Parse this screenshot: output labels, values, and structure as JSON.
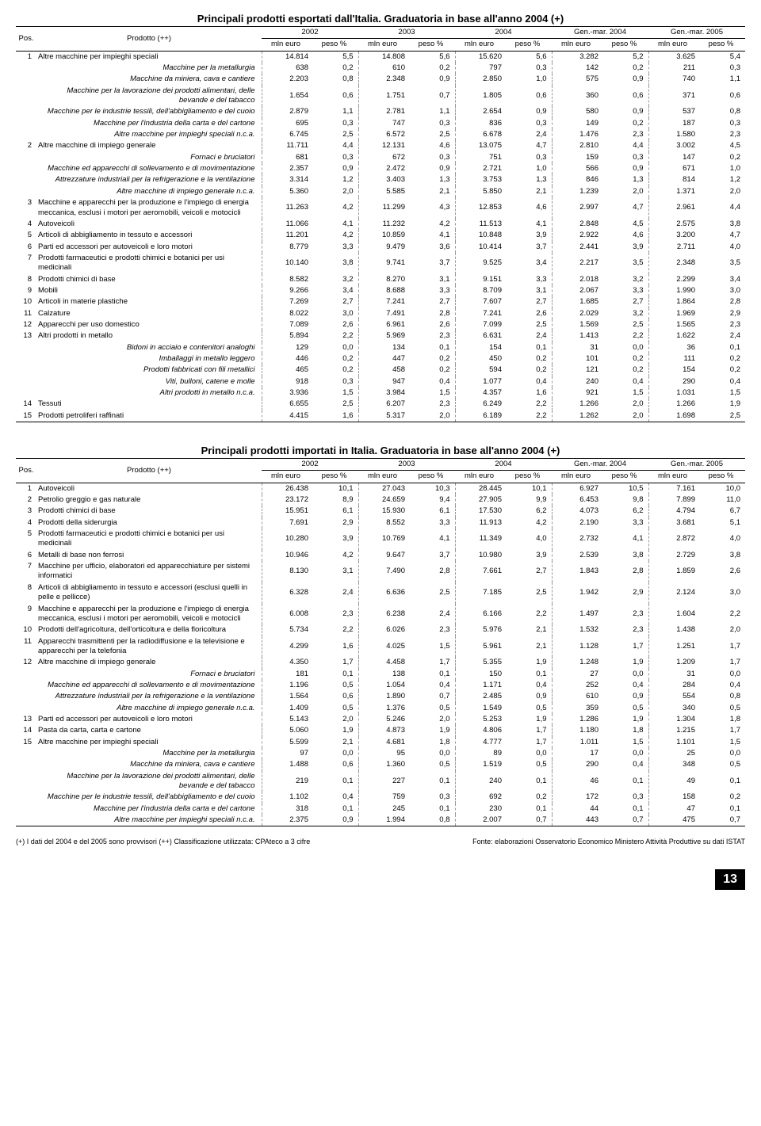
{
  "table1": {
    "title": "Principali prodotti esportati dall'Italia. Graduatoria in base all'anno 2004 (+)",
    "headers": {
      "pos": "Pos.",
      "prodotto": "Prodotto (++)",
      "years": [
        "2002",
        "2003",
        "2004",
        "Gen.-mar. 2004",
        "Gen.-mar. 2005"
      ],
      "sub": [
        "mln euro",
        "peso %"
      ]
    },
    "rows": [
      {
        "pos": "1",
        "prod": "Altre macchine per impieghi speciali",
        "v": [
          "14.814",
          "5,5",
          "14.808",
          "5,6",
          "15.620",
          "5,6",
          "3.282",
          "5,2",
          "3.625",
          "5,4"
        ]
      },
      {
        "sub": 1,
        "prod": "Macchine per la metallurgia",
        "v": [
          "638",
          "0,2",
          "610",
          "0,2",
          "797",
          "0,3",
          "142",
          "0,2",
          "211",
          "0,3"
        ]
      },
      {
        "sub": 1,
        "prod": "Macchine da miniera, cava e cantiere",
        "v": [
          "2.203",
          "0,8",
          "2.348",
          "0,9",
          "2.850",
          "1,0",
          "575",
          "0,9",
          "740",
          "1,1"
        ]
      },
      {
        "sub": 1,
        "prod": "Macchine per la lavorazione dei prodotti alimentari, delle bevande e del tabacco",
        "v": [
          "1.654",
          "0,6",
          "1.751",
          "0,7",
          "1.805",
          "0,6",
          "360",
          "0,6",
          "371",
          "0,6"
        ]
      },
      {
        "sub": 1,
        "prod": "Macchine per le industrie tessili, dell'abbigliamento e del cuoio",
        "v": [
          "2.879",
          "1,1",
          "2.781",
          "1,1",
          "2.654",
          "0,9",
          "580",
          "0,9",
          "537",
          "0,8"
        ]
      },
      {
        "sub": 1,
        "prod": "Macchine per l'industria della carta e del cartone",
        "v": [
          "695",
          "0,3",
          "747",
          "0,3",
          "836",
          "0,3",
          "149",
          "0,2",
          "187",
          "0,3"
        ]
      },
      {
        "sub": 1,
        "prod": "Altre macchine per impieghi speciali n.c.a.",
        "v": [
          "6.745",
          "2,5",
          "6.572",
          "2,5",
          "6.678",
          "2,4",
          "1.476",
          "2,3",
          "1.580",
          "2,3"
        ]
      },
      {
        "pos": "2",
        "prod": "Altre macchine di impiego generale",
        "v": [
          "11.711",
          "4,4",
          "12.131",
          "4,6",
          "13.075",
          "4,7",
          "2.810",
          "4,4",
          "3.002",
          "4,5"
        ]
      },
      {
        "sub": 1,
        "prod": "Fornaci e bruciatori",
        "v": [
          "681",
          "0,3",
          "672",
          "0,3",
          "751",
          "0,3",
          "159",
          "0,3",
          "147",
          "0,2"
        ]
      },
      {
        "sub": 1,
        "prod": "Macchine ed apparecchi di sollevamento e di movimentazione",
        "v": [
          "2.357",
          "0,9",
          "2.472",
          "0,9",
          "2.721",
          "1,0",
          "566",
          "0,9",
          "671",
          "1,0"
        ]
      },
      {
        "sub": 1,
        "prod": "Attrezzature industriali per la refrigerazione e la ventilazione",
        "v": [
          "3.314",
          "1,2",
          "3.403",
          "1,3",
          "3.753",
          "1,3",
          "846",
          "1,3",
          "814",
          "1,2"
        ]
      },
      {
        "sub": 1,
        "prod": "Altre macchine di impiego generale n.c.a.",
        "v": [
          "5.360",
          "2,0",
          "5.585",
          "2,1",
          "5.850",
          "2,1",
          "1.239",
          "2,0",
          "1.371",
          "2,0"
        ]
      },
      {
        "pos": "3",
        "prod": "Macchine e apparecchi per la produzione e l'impiego di energia meccanica, esclusi i motori per aeromobili, veicoli e motocicli",
        "v": [
          "11.263",
          "4,2",
          "11.299",
          "4,3",
          "12.853",
          "4,6",
          "2.997",
          "4,7",
          "2.961",
          "4,4"
        ]
      },
      {
        "pos": "4",
        "prod": "Autoveicoli",
        "v": [
          "11.066",
          "4,1",
          "11.232",
          "4,2",
          "11.513",
          "4,1",
          "2.848",
          "4,5",
          "2.575",
          "3,8"
        ]
      },
      {
        "pos": "5",
        "prod": "Articoli di abbigliamento in tessuto e accessori",
        "v": [
          "11.201",
          "4,2",
          "10.859",
          "4,1",
          "10.848",
          "3,9",
          "2.922",
          "4,6",
          "3.200",
          "4,7"
        ]
      },
      {
        "pos": "6",
        "prod": "Parti ed accessori per autoveicoli e loro motori",
        "v": [
          "8.779",
          "3,3",
          "9.479",
          "3,6",
          "10.414",
          "3,7",
          "2.441",
          "3,9",
          "2.711",
          "4,0"
        ]
      },
      {
        "pos": "7",
        "prod": "Prodotti farmaceutici e prodotti chimici e botanici per usi medicinali",
        "v": [
          "10.140",
          "3,8",
          "9.741",
          "3,7",
          "9.525",
          "3,4",
          "2.217",
          "3,5",
          "2.348",
          "3,5"
        ]
      },
      {
        "pos": "8",
        "prod": "Prodotti chimici di base",
        "v": [
          "8.582",
          "3,2",
          "8.270",
          "3,1",
          "9.151",
          "3,3",
          "2.018",
          "3,2",
          "2.299",
          "3,4"
        ]
      },
      {
        "pos": "9",
        "prod": "Mobili",
        "v": [
          "9.266",
          "3,4",
          "8.688",
          "3,3",
          "8.709",
          "3,1",
          "2.067",
          "3,3",
          "1.990",
          "3,0"
        ]
      },
      {
        "pos": "10",
        "prod": "Articoli in materie plastiche",
        "v": [
          "7.269",
          "2,7",
          "7.241",
          "2,7",
          "7.607",
          "2,7",
          "1.685",
          "2,7",
          "1.864",
          "2,8"
        ]
      },
      {
        "pos": "11",
        "prod": "Calzature",
        "v": [
          "8.022",
          "3,0",
          "7.491",
          "2,8",
          "7.241",
          "2,6",
          "2.029",
          "3,2",
          "1.969",
          "2,9"
        ]
      },
      {
        "pos": "12",
        "prod": "Apparecchi per uso domestico",
        "v": [
          "7.089",
          "2,6",
          "6.961",
          "2,6",
          "7.099",
          "2,5",
          "1.569",
          "2,5",
          "1.565",
          "2,3"
        ]
      },
      {
        "pos": "13",
        "prod": "Altri prodotti in metallo",
        "v": [
          "5.894",
          "2,2",
          "5.969",
          "2,3",
          "6.631",
          "2,4",
          "1.413",
          "2,2",
          "1.622",
          "2,4"
        ]
      },
      {
        "sub": 1,
        "prod": "Bidoni in acciaio e contenitori analoghi",
        "v": [
          "129",
          "0,0",
          "134",
          "0,1",
          "154",
          "0,1",
          "31",
          "0,0",
          "36",
          "0,1"
        ]
      },
      {
        "sub": 1,
        "prod": "Imballaggi in metallo leggero",
        "v": [
          "446",
          "0,2",
          "447",
          "0,2",
          "450",
          "0,2",
          "101",
          "0,2",
          "111",
          "0,2"
        ]
      },
      {
        "sub": 1,
        "prod": "Prodotti fabbricati con fili metallici",
        "v": [
          "465",
          "0,2",
          "458",
          "0,2",
          "594",
          "0,2",
          "121",
          "0,2",
          "154",
          "0,2"
        ]
      },
      {
        "sub": 1,
        "prod": "Viti, bulloni, catene e molle",
        "v": [
          "918",
          "0,3",
          "947",
          "0,4",
          "1.077",
          "0,4",
          "240",
          "0,4",
          "290",
          "0,4"
        ]
      },
      {
        "sub": 1,
        "prod": "Altri prodotti in metallo n.c.a.",
        "v": [
          "3.936",
          "1,5",
          "3.984",
          "1,5",
          "4.357",
          "1,6",
          "921",
          "1,5",
          "1.031",
          "1,5"
        ]
      },
      {
        "pos": "14",
        "prod": "Tessuti",
        "v": [
          "6.655",
          "2,5",
          "6.207",
          "2,3",
          "6.249",
          "2,2",
          "1.266",
          "2,0",
          "1.266",
          "1,9"
        ]
      },
      {
        "pos": "15",
        "prod": "Prodotti petroliferi raffinati",
        "v": [
          "4.415",
          "1,6",
          "5.317",
          "2,0",
          "6.189",
          "2,2",
          "1.262",
          "2,0",
          "1.698",
          "2,5"
        ],
        "last": 1
      }
    ]
  },
  "table2": {
    "title": "Principali prodotti importati in Italia. Graduatoria in base all'anno 2004 (+)",
    "rows": [
      {
        "pos": "1",
        "prod": "Autoveicoli",
        "v": [
          "26.438",
          "10,1",
          "27.043",
          "10,3",
          "28.445",
          "10,1",
          "6.927",
          "10,5",
          "7.161",
          "10,0"
        ]
      },
      {
        "pos": "2",
        "prod": "Petrolio greggio e gas naturale",
        "v": [
          "23.172",
          "8,9",
          "24.659",
          "9,4",
          "27.905",
          "9,9",
          "6.453",
          "9,8",
          "7.899",
          "11,0"
        ]
      },
      {
        "pos": "3",
        "prod": "Prodotti chimici di base",
        "v": [
          "15.951",
          "6,1",
          "15.930",
          "6,1",
          "17.530",
          "6,2",
          "4.073",
          "6,2",
          "4.794",
          "6,7"
        ]
      },
      {
        "pos": "4",
        "prod": "Prodotti della siderurgia",
        "v": [
          "7.691",
          "2,9",
          "8.552",
          "3,3",
          "11.913",
          "4,2",
          "2.190",
          "3,3",
          "3.681",
          "5,1"
        ]
      },
      {
        "pos": "5",
        "prod": "Prodotti farmaceutici e prodotti chimici e botanici per usi medicinali",
        "v": [
          "10.280",
          "3,9",
          "10.769",
          "4,1",
          "11.349",
          "4,0",
          "2.732",
          "4,1",
          "2.872",
          "4,0"
        ]
      },
      {
        "pos": "6",
        "prod": "Metalli di base non ferrosi",
        "v": [
          "10.946",
          "4,2",
          "9.647",
          "3,7",
          "10.980",
          "3,9",
          "2.539",
          "3,8",
          "2.729",
          "3,8"
        ]
      },
      {
        "pos": "7",
        "prod": "Macchine per ufficio, elaboratori ed apparecchiature per sistemi informatici",
        "v": [
          "8.130",
          "3,1",
          "7.490",
          "2,8",
          "7.661",
          "2,7",
          "1.843",
          "2,8",
          "1.859",
          "2,6"
        ]
      },
      {
        "pos": "8",
        "prod": "Articoli di abbigliamento in tessuto e accessori (esclusi quelli in pelle e pellicce)",
        "v": [
          "6.328",
          "2,4",
          "6.636",
          "2,5",
          "7.185",
          "2,5",
          "1.942",
          "2,9",
          "2.124",
          "3,0"
        ]
      },
      {
        "pos": "9",
        "prod": "Macchine e apparecchi per la produzione e l'impiego di energia meccanica, esclusi i motori per aeromobili, veicoli e motocicli",
        "v": [
          "6.008",
          "2,3",
          "6.238",
          "2,4",
          "6.166",
          "2,2",
          "1.497",
          "2,3",
          "1.604",
          "2,2"
        ]
      },
      {
        "pos": "10",
        "prod": "Prodotti dell'agricoltura, dell'orticoltura e della floricoltura",
        "v": [
          "5.734",
          "2,2",
          "6.026",
          "2,3",
          "5.976",
          "2,1",
          "1.532",
          "2,3",
          "1.438",
          "2,0"
        ]
      },
      {
        "pos": "11",
        "prod": "Apparecchi trasmittenti per la radiodiffusione e la televisione e apparecchi per la telefonia",
        "v": [
          "4.299",
          "1,6",
          "4.025",
          "1,5",
          "5.961",
          "2,1",
          "1.128",
          "1,7",
          "1.251",
          "1,7"
        ]
      },
      {
        "pos": "12",
        "prod": "Altre macchine di impiego generale",
        "v": [
          "4.350",
          "1,7",
          "4.458",
          "1,7",
          "5.355",
          "1,9",
          "1.248",
          "1,9",
          "1.209",
          "1,7"
        ]
      },
      {
        "sub": 1,
        "prod": "Fornaci e bruciatori",
        "v": [
          "181",
          "0,1",
          "138",
          "0,1",
          "150",
          "0,1",
          "27",
          "0,0",
          "31",
          "0,0"
        ]
      },
      {
        "sub": 1,
        "prod": "Macchine ed apparecchi di sollevamento e di movimentazione",
        "v": [
          "1.196",
          "0,5",
          "1.054",
          "0,4",
          "1.171",
          "0,4",
          "252",
          "0,4",
          "284",
          "0,4"
        ]
      },
      {
        "sub": 1,
        "prod": "Attrezzature industriali per la refrigerazione e la ventilazione",
        "v": [
          "1.564",
          "0,6",
          "1.890",
          "0,7",
          "2.485",
          "0,9",
          "610",
          "0,9",
          "554",
          "0,8"
        ]
      },
      {
        "sub": 1,
        "prod": "Altre macchine di impiego generale n.c.a.",
        "v": [
          "1.409",
          "0,5",
          "1.376",
          "0,5",
          "1.549",
          "0,5",
          "359",
          "0,5",
          "340",
          "0,5"
        ]
      },
      {
        "pos": "13",
        "prod": "Parti ed accessori per autoveicoli e loro motori",
        "v": [
          "5.143",
          "2,0",
          "5.246",
          "2,0",
          "5.253",
          "1,9",
          "1.286",
          "1,9",
          "1.304",
          "1,8"
        ]
      },
      {
        "pos": "14",
        "prod": "Pasta da carta, carta e cartone",
        "v": [
          "5.060",
          "1,9",
          "4.873",
          "1,9",
          "4.806",
          "1,7",
          "1.180",
          "1,8",
          "1.215",
          "1,7"
        ]
      },
      {
        "pos": "15",
        "prod": "Altre macchine per impieghi speciali",
        "v": [
          "5.599",
          "2,1",
          "4.681",
          "1,8",
          "4.777",
          "1,7",
          "1.011",
          "1,5",
          "1.101",
          "1,5"
        ]
      },
      {
        "sub": 1,
        "prod": "Macchine per la metallurgia",
        "v": [
          "97",
          "0,0",
          "95",
          "0,0",
          "89",
          "0,0",
          "17",
          "0,0",
          "25",
          "0,0"
        ]
      },
      {
        "sub": 1,
        "prod": "Macchine da miniera, cava e cantiere",
        "v": [
          "1.488",
          "0,6",
          "1.360",
          "0,5",
          "1.519",
          "0,5",
          "290",
          "0,4",
          "348",
          "0,5"
        ]
      },
      {
        "sub": 1,
        "prod": "Macchine per la lavorazione dei prodotti alimentari, delle bevande e del tabacco",
        "v": [
          "219",
          "0,1",
          "227",
          "0,1",
          "240",
          "0,1",
          "46",
          "0,1",
          "49",
          "0,1"
        ]
      },
      {
        "sub": 1,
        "prod": "Macchine per le industrie tessili, dell'abbigliamento e del cuoio",
        "v": [
          "1.102",
          "0,4",
          "759",
          "0,3",
          "692",
          "0,2",
          "172",
          "0,3",
          "158",
          "0,2"
        ]
      },
      {
        "sub": 1,
        "prod": "Macchine per l'industria della carta e del cartone",
        "v": [
          "318",
          "0,1",
          "245",
          "0,1",
          "230",
          "0,1",
          "44",
          "0,1",
          "47",
          "0,1"
        ]
      },
      {
        "sub": 1,
        "prod": "Altre macchine per impieghi speciali n.c.a.",
        "v": [
          "2.375",
          "0,9",
          "1.994",
          "0,8",
          "2.007",
          "0,7",
          "443",
          "0,7",
          "475",
          "0,7"
        ],
        "last": 1
      }
    ]
  },
  "footnote_left": "(+) I dati del 2004 e del 2005 sono provvisori   (++) Classificazione utilizzata: CPAteco a 3 cifre",
  "footnote_right": "Fonte: elaborazioni Osservatorio Economico Ministero Attività Produttive su dati ISTAT",
  "page_num": "13"
}
